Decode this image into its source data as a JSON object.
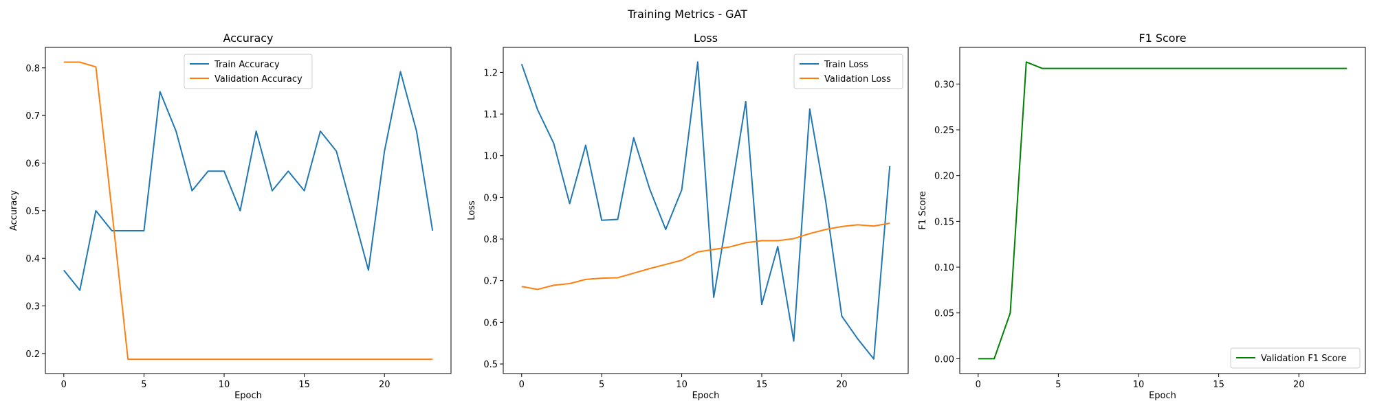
{
  "figure": {
    "title": "Training Metrics - GAT"
  },
  "colors": {
    "train": "#1f77b4",
    "validation": "#ff7f0e",
    "f1": "#008000",
    "axis": "#000000"
  },
  "chart_data": [
    {
      "id": "accuracy",
      "type": "line",
      "title": "Accuracy",
      "xlabel": "Epoch",
      "ylabel": "Accuracy",
      "xlim": [
        -1.15,
        24.15
      ],
      "ylim": [
        0.158,
        0.843
      ],
      "xticks": [
        0,
        5,
        10,
        15,
        20
      ],
      "yticks": [
        0.2,
        0.3,
        0.4,
        0.5,
        0.6,
        0.7,
        0.8
      ],
      "tick_labels_y": [
        "0.2",
        "0.3",
        "0.4",
        "0.5",
        "0.6",
        "0.7",
        "0.8"
      ],
      "legend_position": "upper-center",
      "x": [
        0,
        1,
        2,
        3,
        4,
        5,
        6,
        7,
        8,
        9,
        10,
        11,
        12,
        13,
        14,
        15,
        16,
        17,
        18,
        19,
        20,
        21,
        22,
        23
      ],
      "series": [
        {
          "name": "Train Accuracy",
          "color_key": "train",
          "values": [
            0.375,
            0.333,
            0.5,
            0.458,
            0.458,
            0.458,
            0.75,
            0.667,
            0.542,
            0.583,
            0.583,
            0.5,
            0.667,
            0.542,
            0.583,
            0.542,
            0.667,
            0.625,
            0.5,
            0.375,
            0.625,
            0.792,
            0.667,
            0.458
          ]
        },
        {
          "name": "Validation Accuracy",
          "color_key": "validation",
          "values": [
            0.812,
            0.812,
            0.802,
            0.5,
            0.188,
            0.188,
            0.188,
            0.188,
            0.188,
            0.188,
            0.188,
            0.188,
            0.188,
            0.188,
            0.188,
            0.188,
            0.188,
            0.188,
            0.188,
            0.188,
            0.188,
            0.188,
            0.188,
            0.188
          ]
        }
      ]
    },
    {
      "id": "loss",
      "type": "line",
      "title": "Loss",
      "xlabel": "Epoch",
      "ylabel": "Loss",
      "xlim": [
        -1.15,
        24.15
      ],
      "ylim": [
        0.477,
        1.26
      ],
      "xticks": [
        0,
        5,
        10,
        15,
        20
      ],
      "yticks": [
        0.5,
        0.6,
        0.7,
        0.8,
        0.9,
        1.0,
        1.1,
        1.2
      ],
      "tick_labels_y": [
        "0.5",
        "0.6",
        "0.7",
        "0.8",
        "0.9",
        "1.0",
        "1.1",
        "1.2"
      ],
      "legend_position": "upper-right",
      "x": [
        0,
        1,
        2,
        3,
        4,
        5,
        6,
        7,
        8,
        9,
        10,
        11,
        12,
        13,
        14,
        15,
        16,
        17,
        18,
        19,
        20,
        21,
        22,
        23
      ],
      "series": [
        {
          "name": "Train Loss",
          "color_key": "train",
          "values": [
            1.22,
            1.11,
            1.03,
            0.885,
            1.025,
            0.845,
            0.847,
            1.043,
            0.92,
            0.823,
            0.918,
            1.225,
            0.66,
            0.89,
            1.13,
            0.643,
            0.782,
            0.555,
            1.112,
            0.89,
            0.615,
            0.56,
            0.512,
            0.975
          ]
        },
        {
          "name": "Validation Loss",
          "color_key": "validation",
          "values": [
            0.686,
            0.679,
            0.689,
            0.693,
            0.703,
            0.706,
            0.707,
            0.718,
            0.729,
            0.739,
            0.749,
            0.769,
            0.775,
            0.781,
            0.791,
            0.796,
            0.796,
            0.801,
            0.813,
            0.823,
            0.83,
            0.834,
            0.831,
            0.838
          ]
        }
      ]
    },
    {
      "id": "f1",
      "type": "line",
      "title": "F1 Score",
      "xlabel": "Epoch",
      "ylabel": "F1 Score",
      "xlim": [
        -1.15,
        24.15
      ],
      "ylim": [
        -0.0162,
        0.34
      ],
      "xticks": [
        0,
        5,
        10,
        15,
        20
      ],
      "yticks": [
        0.0,
        0.05,
        0.1,
        0.15,
        0.2,
        0.25,
        0.3
      ],
      "tick_labels_y": [
        "0.00",
        "0.05",
        "0.10",
        "0.15",
        "0.20",
        "0.25",
        "0.30"
      ],
      "legend_position": "lower-right",
      "x": [
        0,
        1,
        2,
        3,
        4,
        5,
        6,
        7,
        8,
        9,
        10,
        11,
        12,
        13,
        14,
        15,
        16,
        17,
        18,
        19,
        20,
        21,
        22,
        23
      ],
      "series": [
        {
          "name": "Validation F1 Score",
          "color_key": "f1",
          "values": [
            0.0,
            0.0,
            0.05,
            0.324,
            0.317,
            0.317,
            0.317,
            0.317,
            0.317,
            0.317,
            0.317,
            0.317,
            0.317,
            0.317,
            0.317,
            0.317,
            0.317,
            0.317,
            0.317,
            0.317,
            0.317,
            0.317,
            0.317,
            0.317
          ]
        }
      ]
    }
  ]
}
